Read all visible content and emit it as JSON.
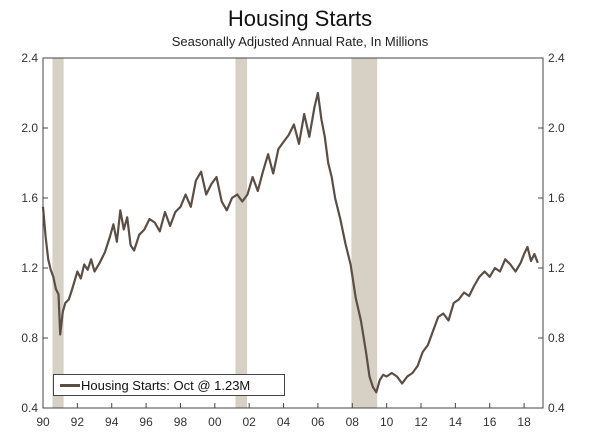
{
  "chart_data": {
    "type": "line",
    "title": "Housing Starts",
    "subtitle": "Seasonally Adjusted Annual Rate, In Millions",
    "xlabel": "",
    "ylabel": "",
    "xlim": [
      1990,
      2019.1
    ],
    "ylim": [
      0.4,
      2.4
    ],
    "y_ticks": [
      0.4,
      0.8,
      1.2,
      1.6,
      2.0,
      2.4
    ],
    "y_tick_labels": [
      "0.4",
      "0.8",
      "1.2",
      "1.6",
      "2.0",
      "2.4"
    ],
    "x_ticks": [
      1990,
      1992,
      1994,
      1996,
      1998,
      2000,
      2002,
      2004,
      2006,
      2008,
      2010,
      2012,
      2014,
      2016,
      2018
    ],
    "x_tick_labels": [
      "90",
      "92",
      "94",
      "96",
      "98",
      "00",
      "02",
      "04",
      "06",
      "08",
      "10",
      "12",
      "14",
      "16",
      "18"
    ],
    "recessions": [
      [
        1990.55,
        1991.2
      ],
      [
        2001.2,
        2001.88
      ],
      [
        2007.95,
        2009.45
      ]
    ],
    "series": [
      {
        "name": "Housing Starts",
        "color": "#5a4e45",
        "x": [
          1990.0,
          1990.15,
          1990.3,
          1990.45,
          1990.6,
          1990.75,
          1990.9,
          1991.0,
          1991.15,
          1991.3,
          1991.5,
          1991.7,
          1992.0,
          1992.2,
          1992.4,
          1992.6,
          1992.8,
          1993.0,
          1993.3,
          1993.6,
          1993.9,
          1994.1,
          1994.3,
          1994.5,
          1994.7,
          1994.9,
          1995.1,
          1995.3,
          1995.6,
          1995.9,
          1996.2,
          1996.5,
          1996.8,
          1997.1,
          1997.4,
          1997.7,
          1998.0,
          1998.3,
          1998.6,
          1998.9,
          1999.2,
          1999.5,
          1999.8,
          2000.1,
          2000.4,
          2000.7,
          2001.0,
          2001.3,
          2001.6,
          2001.9,
          2002.2,
          2002.5,
          2002.8,
          2003.1,
          2003.4,
          2003.7,
          2004.0,
          2004.3,
          2004.6,
          2004.9,
          2005.2,
          2005.5,
          2005.8,
          2006.0,
          2006.2,
          2006.4,
          2006.6,
          2006.8,
          2007.0,
          2007.3,
          2007.6,
          2007.9,
          2008.2,
          2008.5,
          2008.8,
          2009.0,
          2009.2,
          2009.4,
          2009.6,
          2009.8,
          2010.0,
          2010.3,
          2010.6,
          2010.9,
          2011.2,
          2011.5,
          2011.8,
          2012.1,
          2012.4,
          2012.7,
          2013.0,
          2013.3,
          2013.6,
          2013.9,
          2014.2,
          2014.5,
          2014.8,
          2015.1,
          2015.4,
          2015.7,
          2016.0,
          2016.3,
          2016.6,
          2016.9,
          2017.2,
          2017.5,
          2017.8,
          2018.0,
          2018.2,
          2018.4,
          2018.6,
          2018.8
        ],
        "values": [
          1.55,
          1.38,
          1.25,
          1.19,
          1.15,
          1.08,
          1.05,
          0.82,
          0.95,
          1.0,
          1.02,
          1.08,
          1.18,
          1.14,
          1.22,
          1.19,
          1.25,
          1.18,
          1.23,
          1.29,
          1.38,
          1.45,
          1.35,
          1.53,
          1.42,
          1.49,
          1.33,
          1.3,
          1.39,
          1.42,
          1.48,
          1.46,
          1.41,
          1.52,
          1.44,
          1.52,
          1.55,
          1.62,
          1.55,
          1.7,
          1.75,
          1.62,
          1.68,
          1.72,
          1.58,
          1.53,
          1.6,
          1.62,
          1.58,
          1.62,
          1.72,
          1.64,
          1.75,
          1.85,
          1.74,
          1.88,
          1.92,
          1.96,
          2.02,
          1.91,
          2.08,
          1.95,
          2.12,
          2.2,
          2.05,
          1.95,
          1.8,
          1.72,
          1.6,
          1.48,
          1.34,
          1.22,
          1.03,
          0.9,
          0.72,
          0.58,
          0.52,
          0.49,
          0.56,
          0.59,
          0.58,
          0.6,
          0.58,
          0.54,
          0.58,
          0.6,
          0.64,
          0.72,
          0.76,
          0.84,
          0.92,
          0.94,
          0.9,
          1.0,
          1.02,
          1.06,
          1.04,
          1.1,
          1.15,
          1.18,
          1.15,
          1.2,
          1.18,
          1.25,
          1.22,
          1.18,
          1.23,
          1.28,
          1.32,
          1.24,
          1.28,
          1.23
        ]
      }
    ],
    "legend": "Housing Starts: Oct @ 1.23M",
    "legend_position": "bottom-left"
  }
}
